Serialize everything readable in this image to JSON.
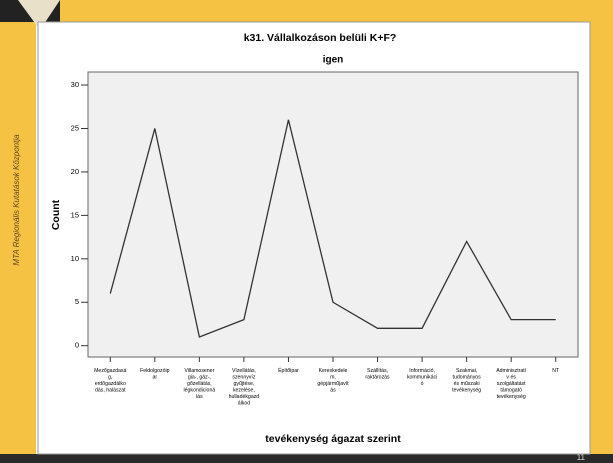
{
  "side_text": "MTA Regionális Kutatások Központja",
  "page_number": "11",
  "chart_data": {
    "type": "line",
    "title": "k31. Vállalkozáson belüli K+F?",
    "subtitle": "igen",
    "x_label": "tevékenység ágazat szerint",
    "y_label": "Count",
    "categories": [
      "Mezőgazdasá\ng,\nerdőgazdálko\ndás, halászat",
      "Feldolgozóip\nar",
      "Villamosener\ngia-, gáz-,\ngőzellátás,\nlégkondicioná\nlás",
      "Vízellátás,\nszennyvíz\ngyűjtése,\nkezelése,\nhulladékgazd\nálkod",
      "Építőipar",
      "Kereskedele\nm,\ngépjárműjavít\nás",
      "Szállítás,\nraktározás",
      "Információ,\nkommunikáci\nó",
      "Szakmai,\ntudományos\nés műszaki\ntevékenység",
      "Adminisztratí\nv és\nszolgáltatást\ntámogató\ntevékenység",
      "NT"
    ],
    "values": [
      6,
      25,
      1,
      3,
      26,
      5,
      2,
      2,
      12,
      3,
      3
    ],
    "color": "#333333",
    "ylim": [
      -1.3,
      31.5
    ],
    "yticks": [
      0,
      5,
      10,
      15,
      20,
      25,
      30
    ]
  }
}
